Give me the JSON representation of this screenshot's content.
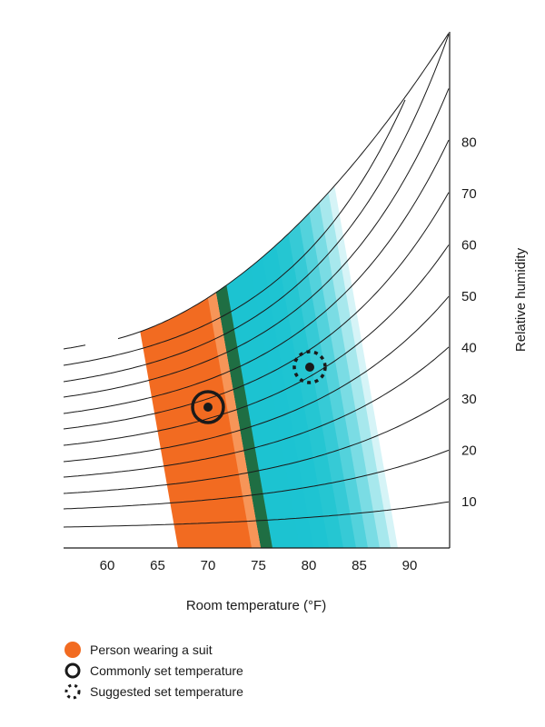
{
  "chart_data": {
    "type": "psychrometric",
    "xlabel": "Room temperature (°F)",
    "ylabel": "Relative humidity",
    "x_ticks": [
      60,
      65,
      70,
      75,
      80,
      85,
      90
    ],
    "humidity_curves": [
      10,
      20,
      30,
      40,
      50,
      60,
      70,
      80
    ],
    "rh_tick_labels": [
      10,
      20,
      30,
      40,
      50,
      60,
      70,
      80
    ],
    "regions": [
      {
        "name": "Person wearing a suit",
        "color": "#f26b21"
      }
    ],
    "markers": [
      {
        "name": "Commonly set temperature",
        "temperature": 70,
        "relative_humidity": 30
      },
      {
        "name": "Suggested set temperature",
        "temperature": 80,
        "relative_humidity": 37
      }
    ],
    "colors": {
      "suit_zone": "#f26b21",
      "overlap_zone": "#1f6e43",
      "cyan_zone": "#1cc3d1",
      "curves": "#1a1a1a"
    }
  },
  "legend": [
    {
      "label": "Person wearing a suit",
      "icon": "orange-dot"
    },
    {
      "label": "Commonly set temperature",
      "icon": "solid-ring"
    },
    {
      "label": "Suggested set temperature",
      "icon": "dashed-ring"
    }
  ]
}
